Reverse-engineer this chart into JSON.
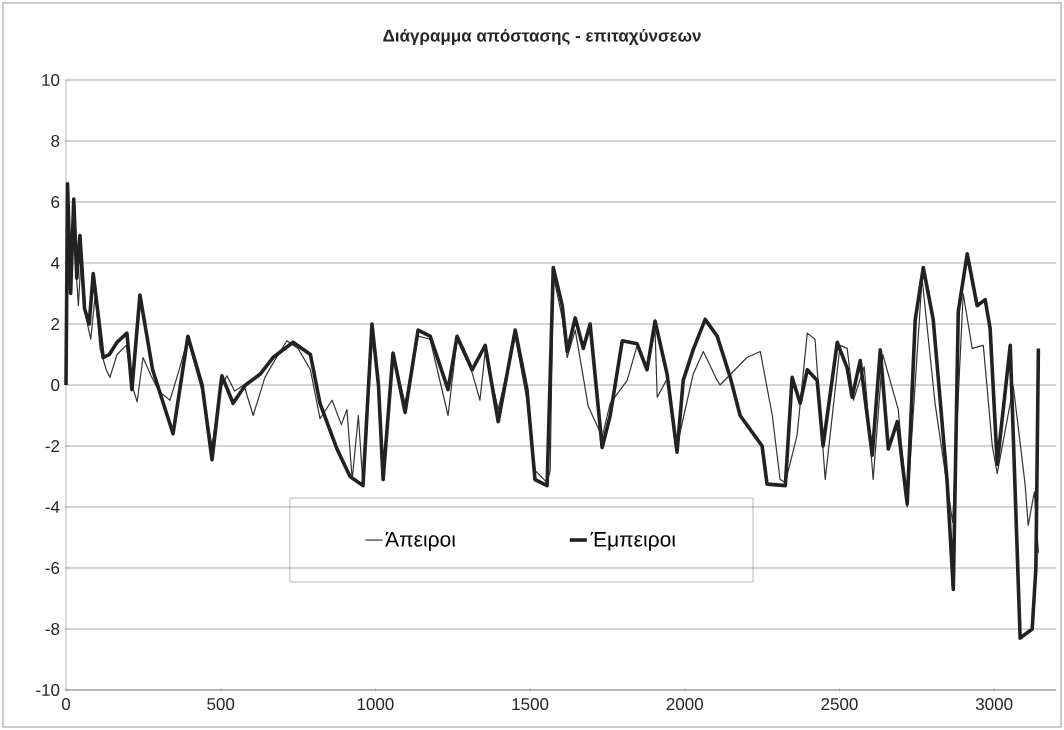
{
  "chart_data": {
    "type": "line",
    "title": "Διάγραμμα απόστασης - επιταχύνσεων",
    "xlim": [
      0,
      3200
    ],
    "xticks": [
      0,
      500,
      1000,
      1500,
      2000,
      2500,
      3000
    ],
    "ylim": [
      -10,
      10
    ],
    "yticks": [
      -10,
      -8,
      -6,
      -4,
      -2,
      0,
      2,
      4,
      6,
      8,
      10
    ],
    "grid": "y",
    "legend": "bottom",
    "line_style": "solid",
    "marker": "none",
    "series": [
      {
        "name": "Άπειροι",
        "color": "#333333",
        "x": [
          0,
          5,
          15,
          25,
          40,
          50,
          65,
          80,
          95,
          110,
          130,
          142,
          165,
          195,
          213,
          230,
          249,
          275,
          300,
          336,
          360,
          394,
          440,
          472,
          500,
          520,
          545,
          575,
          605,
          643,
          680,
          714,
          750,
          790,
          821,
          860,
          890,
          908,
          925,
          945,
          960,
          989,
          1010,
          1025,
          1057,
          1096,
          1138,
          1177,
          1235,
          1264,
          1313,
          1338,
          1355,
          1397,
          1452,
          1490,
          1516,
          1555,
          1565,
          1575,
          1604,
          1620,
          1646,
          1688,
          1733,
          1759,
          1814,
          1846,
          1878,
          1904,
          1911,
          1943,
          1975,
          2027,
          2060,
          2105,
          2114,
          2201,
          2244,
          2283,
          2308,
          2325,
          2363,
          2396,
          2421,
          2454,
          2502,
          2525,
          2545,
          2580,
          2609,
          2640,
          2690,
          2719,
          2767,
          2809,
          2848,
          2866,
          2884,
          2900,
          2929,
          2965,
          2994,
          3010,
          3062,
          3100,
          3110,
          3130,
          3143
        ],
        "values": [
          2.4,
          5.5,
          3.0,
          5.0,
          2.6,
          4.4,
          2.2,
          1.5,
          3.0,
          1.2,
          0.5,
          0.25,
          1.0,
          1.3,
          0.0,
          -0.55,
          0.9,
          0.3,
          -0.2,
          -0.5,
          0.3,
          1.5,
          -0.2,
          -2.0,
          -0.1,
          0.3,
          -0.2,
          0.0,
          -1.0,
          0.25,
          0.9,
          1.45,
          1.2,
          0.5,
          -1.1,
          -0.5,
          -1.3,
          -0.8,
          -3.1,
          -1.0,
          -3.3,
          1.8,
          0.2,
          -2.8,
          1.0,
          -0.6,
          1.6,
          1.5,
          -1.0,
          1.5,
          0.4,
          -0.5,
          1.1,
          -0.8,
          1.6,
          -0.5,
          -2.8,
          -3.2,
          -2.8,
          3.6,
          2.2,
          0.9,
          1.8,
          -0.7,
          -1.7,
          -0.6,
          0.15,
          1.3,
          0.5,
          1.8,
          -0.4,
          0.2,
          -2.0,
          0.35,
          1.1,
          0.15,
          0.0,
          0.9,
          1.1,
          -1.0,
          -3.1,
          -3.2,
          -1.65,
          1.7,
          1.5,
          -3.1,
          1.3,
          1.2,
          -0.5,
          0.6,
          -3.1,
          1.0,
          -0.8,
          -4.0,
          3.5,
          -0.6,
          -3.3,
          -4.5,
          -0.4,
          3.0,
          1.2,
          1.3,
          -2.0,
          -2.9,
          -0.05,
          -3.25,
          -4.6,
          -3.5,
          -5.5
        ]
      },
      {
        "name": "Έμπειροι",
        "color": "#222222",
        "x": [
          0,
          5,
          15,
          25,
          35,
          45,
          60,
          75,
          88,
          110,
          120,
          140,
          165,
          197,
          213,
          239,
          280,
          346,
          394,
          440,
          472,
          500,
          504,
          540,
          580,
          627,
          669,
          734,
          790,
          821,
          876,
          918,
          960,
          989,
          1010,
          1025,
          1057,
          1096,
          1138,
          1177,
          1235,
          1264,
          1313,
          1355,
          1397,
          1452,
          1490,
          1516,
          1555,
          1575,
          1604,
          1620,
          1646,
          1672,
          1694,
          1733,
          1759,
          1798,
          1846,
          1878,
          1904,
          1943,
          1975,
          1995,
          2027,
          2066,
          2105,
          2147,
          2179,
          2250,
          2266,
          2325,
          2347,
          2373,
          2396,
          2428,
          2447,
          2493,
          2525,
          2541,
          2567,
          2606,
          2632,
          2658,
          2687,
          2719,
          2745,
          2771,
          2803,
          2848,
          2868,
          2884,
          2913,
          2945,
          2971,
          2987,
          3010,
          3052,
          3084,
          3123,
          3135,
          3143
        ],
        "values": [
          0,
          6.6,
          3.0,
          6.1,
          3.5,
          4.9,
          2.5,
          2.0,
          3.65,
          1.8,
          0.9,
          1.0,
          1.4,
          1.7,
          -0.15,
          2.95,
          0.5,
          -1.6,
          1.6,
          0.0,
          -2.45,
          0.0,
          0.3,
          -0.6,
          0.0,
          0.35,
          0.9,
          1.4,
          1.0,
          -0.6,
          -2.1,
          -3.0,
          -3.3,
          2.0,
          0.0,
          -3.1,
          1.05,
          -0.9,
          1.8,
          1.6,
          -0.15,
          1.6,
          0.5,
          1.3,
          -1.2,
          1.8,
          -0.15,
          -3.1,
          -3.3,
          3.85,
          2.6,
          1.1,
          2.2,
          1.2,
          2.0,
          -2.05,
          -1.0,
          1.45,
          1.35,
          0.5,
          2.1,
          0.35,
          -2.2,
          0.15,
          1.15,
          2.15,
          1.6,
          0.25,
          -1.0,
          -2.0,
          -3.25,
          -3.3,
          0.25,
          -0.6,
          0.5,
          0.15,
          -2.0,
          1.4,
          0.55,
          -0.4,
          0.8,
          -2.3,
          1.15,
          -2.1,
          -1.2,
          -3.9,
          2.15,
          3.85,
          2.15,
          -3.15,
          -6.7,
          2.4,
          4.3,
          2.6,
          2.8,
          1.85,
          -2.6,
          1.3,
          -8.3,
          -8.0,
          -6.0,
          1.2
        ]
      }
    ]
  }
}
